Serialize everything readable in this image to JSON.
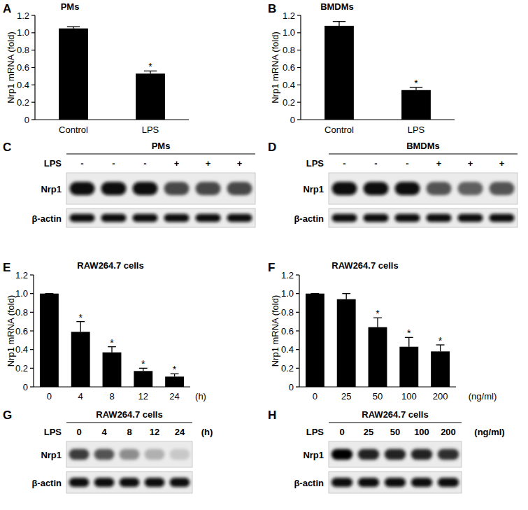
{
  "chart_data": [
    {
      "type": "bar",
      "panel_label": "A",
      "title": "PMs",
      "y_label": "Nrp1 mRNA (fold)",
      "categories": [
        "Control",
        "LPS"
      ],
      "values": [
        1.05,
        0.53
      ],
      "errors": [
        0.02,
        0.03
      ],
      "annotations": [
        null,
        "*"
      ],
      "color": "#000000",
      "ylim": [
        0,
        1.2
      ],
      "yticks": [
        0,
        0.2,
        0.4,
        0.6,
        0.8,
        {
          "value": 1,
          "label": "1.0"
        },
        1.2
      ],
      "grid": false
    },
    {
      "type": "bar",
      "panel_label": "B",
      "title": "BMDMs",
      "y_label": "Nrp1 mRNA (fold)",
      "categories": [
        "Control",
        "LPS"
      ],
      "values": [
        1.08,
        0.34
      ],
      "errors": [
        0.05,
        0.03
      ],
      "annotations": [
        null,
        "*"
      ],
      "color": "#000000",
      "ylim": [
        0,
        1.2
      ],
      "yticks": [
        0,
        0.2,
        0.4,
        0.6,
        0.8,
        {
          "value": 1,
          "label": "1.0"
        },
        1.2
      ],
      "grid": false
    },
    {
      "type": "bar",
      "panel_label": "E",
      "title": "RAW264.7 cells",
      "y_label": "Nrp1 mRNA (fold)",
      "x_label": "(h)",
      "categories": [
        "0",
        "4",
        "8",
        "12",
        "24"
      ],
      "values": [
        1.0,
        0.59,
        0.37,
        0.17,
        0.11
      ],
      "errors": [
        0,
        0.11,
        0.06,
        0.03,
        0.03
      ],
      "annotations": [
        null,
        "*",
        "*",
        "*",
        "*"
      ],
      "color": "#000000",
      "ylim": [
        0,
        1.2
      ],
      "yticks": [
        0,
        0.2,
        0.4,
        0.6,
        0.8,
        {
          "value": 1,
          "label": "1.0"
        },
        1.2
      ],
      "grid": false
    },
    {
      "type": "bar",
      "panel_label": "F",
      "title": "RAW264.7 cells",
      "y_label": "Nrp1 mRNA (fold)",
      "x_label": "(ng/ml)",
      "categories": [
        "0",
        "25",
        "50",
        "100",
        "200"
      ],
      "values": [
        1.0,
        0.94,
        0.64,
        0.43,
        0.38
      ],
      "errors": [
        0,
        0.06,
        0.1,
        0.1,
        0.07
      ],
      "annotations": [
        null,
        null,
        "*",
        "*",
        "*"
      ],
      "color": "#000000",
      "ylim": [
        0,
        1.2
      ],
      "yticks": [
        0,
        0.2,
        0.4,
        0.6,
        0.8,
        {
          "value": 1,
          "label": "1.0"
        },
        1.2
      ],
      "grid": false
    }
  ],
  "blots": [
    {
      "panel_label": "C",
      "title": "PMs",
      "row_label": "LPS",
      "lanes": [
        "-",
        "-",
        "-",
        "+",
        "+",
        "+"
      ],
      "bands": [
        {
          "name": "Nrp1",
          "intensity": [
            0.95,
            0.97,
            0.95,
            0.7,
            0.7,
            0.7
          ]
        },
        {
          "name": "β-actin",
          "intensity": [
            0.95,
            0.95,
            0.95,
            0.95,
            0.95,
            0.95
          ]
        }
      ]
    },
    {
      "panel_label": "D",
      "title": "BMDMs",
      "row_label": "LPS",
      "lanes": [
        "-",
        "-",
        "-",
        "+",
        "+",
        "+"
      ],
      "bands": [
        {
          "name": "Nrp1",
          "intensity": [
            0.95,
            0.95,
            0.95,
            0.65,
            0.6,
            0.65
          ]
        },
        {
          "name": "β-actin",
          "intensity": [
            0.95,
            0.95,
            0.95,
            0.95,
            0.95,
            0.95
          ]
        }
      ]
    },
    {
      "panel_label": "G",
      "title": "RAW264.7 cells",
      "row_label": "LPS",
      "unit": "(h)",
      "lanes": [
        "0",
        "4",
        "8",
        "12",
        "24"
      ],
      "bands": [
        {
          "name": "Nrp1",
          "intensity": [
            0.75,
            0.65,
            0.4,
            0.25,
            0.15
          ]
        },
        {
          "name": "β-actin",
          "intensity": [
            0.95,
            0.95,
            0.95,
            0.95,
            0.95
          ]
        }
      ]
    },
    {
      "panel_label": "H",
      "title": "RAW264.7 cells",
      "row_label": "LPS",
      "unit": "(ng/ml)",
      "lanes": [
        "0",
        "25",
        "50",
        "100",
        "200"
      ],
      "bands": [
        {
          "name": "Nrp1",
          "intensity": [
            1.0,
            0.85,
            0.85,
            0.85,
            0.8
          ]
        },
        {
          "name": "β-actin",
          "intensity": [
            0.95,
            0.95,
            0.95,
            0.95,
            0.95
          ]
        }
      ]
    }
  ]
}
